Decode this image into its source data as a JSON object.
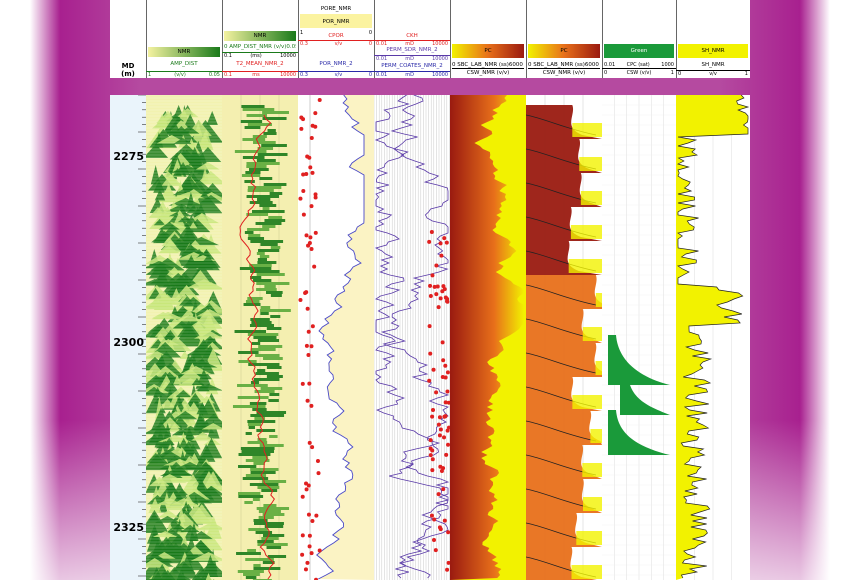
{
  "depth_track": {
    "md_label": "MD",
    "unit_label": "(m)",
    "depths": [
      "2275",
      "2300",
      "2325"
    ]
  },
  "headers": {
    "amp_dist": {
      "title": "NMR",
      "curve1": "AMP_DIST",
      "scale_left": "1",
      "scale_unit": "(v/v)",
      "scale_right": "0.05"
    },
    "t2": {
      "title": "NMR",
      "curve1": "0 AMP_DIST_NMR (v/v)0.05",
      "scale1_left": "0.1",
      "scale1_unit": "(ms)",
      "scale1_right": "10000",
      "curve2": "T2_MEAN_NMR_2",
      "scale2_left": "0.1",
      "scale2_unit": "ms",
      "scale2_right": "10000"
    },
    "poro": {
      "top1": "PORE_NMR",
      "top2": "POR_NMR",
      "scale0_left": "1",
      "scale0_right": "0",
      "curve1": "CPOR",
      "scale1_left": "0.3",
      "scale1_unit": "v/v",
      "scale1_right": "0",
      "curve2": "POR_NMR_2",
      "scale2_left": "0.3",
      "scale2_unit": "v/v",
      "scale2_right": "0"
    },
    "perm": {
      "curve1": "CKH",
      "scale1_left": "0.01",
      "scale1_unit": "mD",
      "scale1_right": "10000",
      "curve2": "PERM_SDR_NMR_2",
      "scale2_left": "0.01",
      "scale2_unit": "mD",
      "scale2_right": "10000",
      "curve3": "PERM_COATES_NMR_2",
      "scale3_left": "0.01",
      "scale3_unit": "mD",
      "scale3_right": "10000"
    },
    "pc1": {
      "title": "PC",
      "curve1": "0 SBC_LAB_NMR (ss)6000",
      "curve2": "CSW_NMR (v/v)"
    },
    "pc2": {
      "title": "PC",
      "curve1": "0 SBC_LAB_NMR (ss)6000",
      "curve2": "CSW_NMR (v/v)"
    },
    "cpc": {
      "title": "Green",
      "curve1": "CPC (sat)",
      "scale1_left": "0.01",
      "scale1_right": "1000",
      "curve2": "CSW (v/v)",
      "scale2_left": "0",
      "scale2_right": "1"
    },
    "sh": {
      "title": "SH_NMR",
      "curve1": "SH_NMR",
      "scale1_left": "0",
      "scale1_unit": "v/v",
      "scale1_right": "1"
    }
  },
  "colors": {
    "green_dark": "#1a7a1a",
    "green_light": "#c8e67a",
    "yellow": "#f2f200",
    "cream": "#fbf3c4",
    "dark_red": "#9a1a10",
    "orange": "#e8701a",
    "purple_curve": "#5a3aa8",
    "red_curve": "#e02020",
    "frame_purple": "#b54aa0"
  }
}
